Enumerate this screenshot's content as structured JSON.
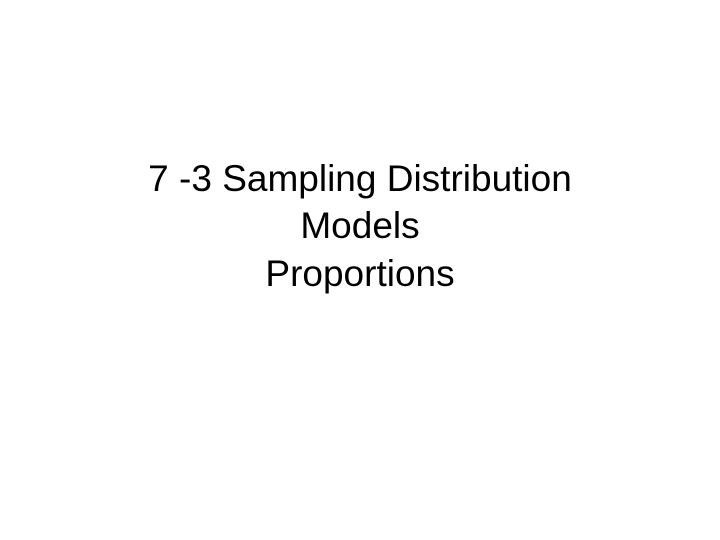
{
  "slide": {
    "title_line1": "7 -3  Sampling Distribution",
    "title_line2": "Models",
    "title_line3": "Proportions",
    "background_color": "#ffffff",
    "text_color": "#000000",
    "font_size": 37
  }
}
